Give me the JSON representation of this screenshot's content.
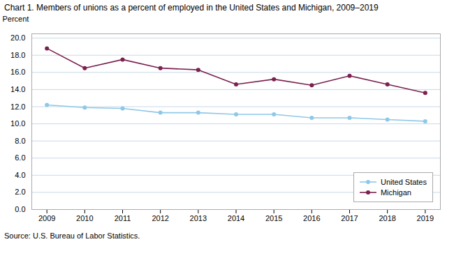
{
  "chart_data": {
    "type": "line",
    "title": "Chart 1. Members of unions as a percent of employed in the United States and Michigan, 2009–2019",
    "ylabel": "Percent",
    "source": "Source: U.S. Bureau of Labor Statistics.",
    "x": [
      2009,
      2010,
      2011,
      2012,
      2013,
      2014,
      2015,
      2016,
      2017,
      2018,
      2019
    ],
    "series": [
      {
        "name": "United States",
        "color": "#8EC8E8",
        "values": [
          12.2,
          11.9,
          11.8,
          11.3,
          11.3,
          11.1,
          11.1,
          10.7,
          10.7,
          10.5,
          10.3
        ]
      },
      {
        "name": "Michigan",
        "color": "#7B2150",
        "values": [
          18.8,
          16.5,
          17.5,
          16.5,
          16.3,
          14.6,
          15.2,
          14.5,
          15.6,
          14.6,
          13.6
        ]
      }
    ],
    "xlim": [
      2008.6,
      2019.4
    ],
    "xticks": [
      2009,
      2010,
      2011,
      2012,
      2013,
      2014,
      2015,
      2016,
      2017,
      2018,
      2019
    ],
    "ylim": [
      0,
      20.5
    ],
    "yticks": [
      {
        "value": 0,
        "label": "0.0"
      },
      {
        "value": 2,
        "label": "2.0"
      },
      {
        "value": 4,
        "label": "4.0"
      },
      {
        "value": 6,
        "label": "6.0"
      },
      {
        "value": 8,
        "label": "8.0"
      },
      {
        "value": 10,
        "label": "10.0"
      },
      {
        "value": 12,
        "label": "12.0"
      },
      {
        "value": 14,
        "label": "14.0"
      },
      {
        "value": 16,
        "label": "16.0"
      },
      {
        "value": 18,
        "label": "18.0"
      },
      {
        "value": 20,
        "label": "20.0"
      }
    ],
    "grid": true,
    "legend": "lower right",
    "marker": "circle"
  }
}
